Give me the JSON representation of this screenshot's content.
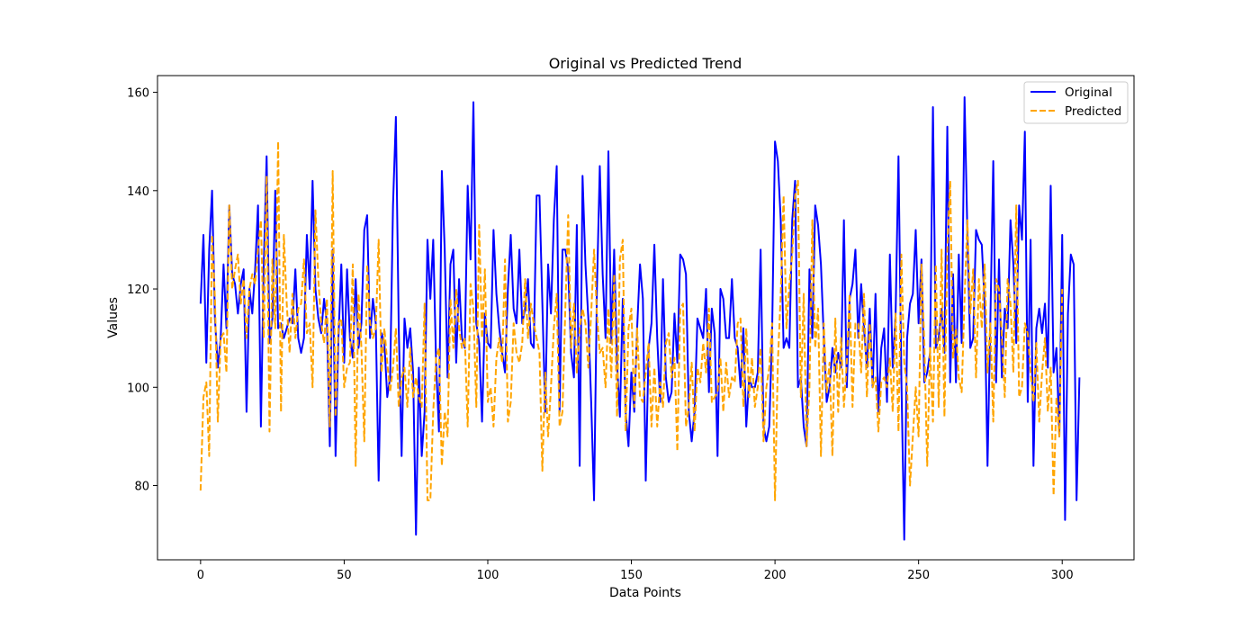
{
  "chart_data": {
    "type": "line",
    "title": "Original vs Predicted Trend",
    "xlabel": "Data Points",
    "ylabel": "Values",
    "xlim": [
      -15,
      325
    ],
    "ylim": [
      64.9,
      163.4
    ],
    "xticks": [
      0,
      50,
      100,
      150,
      200,
      250,
      300
    ],
    "yticks": [
      80,
      100,
      120,
      140,
      160
    ],
    "grid": false,
    "legend_position": "top-right",
    "series": [
      {
        "name": "Original",
        "color": "#0000ff",
        "style": "solid",
        "values": [
          117,
          131,
          105,
          128,
          140,
          114,
          104,
          110,
          125,
          112,
          137,
          123,
          121,
          115,
          121,
          124,
          95,
          120,
          115,
          124,
          137,
          92,
          125,
          147,
          109,
          114,
          140,
          112,
          113,
          110,
          112,
          114,
          113,
          124,
          110,
          107,
          110,
          131,
          120,
          142,
          120,
          114,
          111,
          118,
          113,
          88,
          128,
          86,
          110,
          125,
          105,
          124,
          110,
          106,
          122,
          108,
          113,
          132,
          135,
          110,
          118,
          113,
          81,
          111,
          109,
          98,
          102,
          137,
          155,
          112,
          86,
          114,
          108,
          112,
          103,
          70,
          104,
          86,
          95,
          130,
          118,
          130,
          105,
          91,
          144,
          128,
          102,
          125,
          128,
          105,
          122,
          110,
          108,
          141,
          126,
          158,
          113,
          109,
          93,
          115,
          109,
          108,
          132,
          119,
          112,
          107,
          103,
          120,
          131,
          116,
          113,
          128,
          113,
          116,
          122,
          109,
          108,
          139,
          139,
          117,
          95,
          125,
          115,
          134,
          145,
          95,
          128,
          128,
          124,
          107,
          102,
          133,
          84,
          143,
          125,
          114,
          97,
          77,
          120,
          145,
          123,
          110,
          148,
          109,
          128,
          105,
          94,
          118,
          95,
          88,
          103,
          95,
          112,
          125,
          118,
          81,
          108,
          113,
          129,
          110,
          97,
          122,
          102,
          97,
          99,
          115,
          105,
          127,
          126,
          123,
          95,
          89,
          95,
          114,
          112,
          110,
          120,
          99,
          116,
          111,
          86,
          120,
          118,
          110,
          110,
          122,
          110,
          108,
          100,
          112,
          92,
          102,
          100,
          100,
          103,
          128,
          92,
          89,
          92,
          111,
          150,
          146,
          134,
          108,
          110,
          108,
          134,
          142,
          100,
          102,
          92,
          88,
          124,
          110,
          137,
          133,
          125,
          110,
          97,
          100,
          108,
          103,
          107,
          104,
          134,
          100,
          118,
          121,
          128,
          110,
          121,
          112,
          104,
          116,
          100,
          119,
          95,
          108,
          112,
          97,
          127,
          104,
          115,
          147,
          102,
          69,
          110,
          117,
          119,
          132,
          113,
          126,
          101,
          103,
          107,
          157,
          108,
          110,
          116,
          107,
          153,
          101,
          123,
          101,
          127,
          109,
          159,
          131,
          108,
          110,
          132,
          130,
          129,
          117,
          84,
          114,
          146,
          101,
          126,
          102,
          116,
          112,
          134,
          125,
          109,
          137,
          130,
          152,
          97,
          130,
          84,
          112,
          116,
          111,
          117,
          104,
          141,
          103,
          108,
          90,
          131,
          73,
          115,
          127,
          125,
          77,
          102
        ]
      },
      {
        "name": "Predicted",
        "color": "#ffa500",
        "style": "dashed",
        "values": [
          79,
          98,
          101,
          86,
          131,
          118,
          93,
          110,
          111,
          103,
          137,
          120,
          124,
          127,
          117,
          122,
          110,
          120,
          123,
          121,
          128,
          134,
          110,
          143,
          91,
          126,
          112,
          150,
          95,
          131,
          117,
          107,
          119,
          110,
          116,
          117,
          126,
          111,
          113,
          100,
          136,
          122,
          113,
          109,
          118,
          92,
          144,
          94,
          113,
          114,
          100,
          104,
          105,
          125,
          84,
          119,
          108,
          89,
          125,
          113,
          110,
          112,
          130,
          103,
          112,
          105,
          99,
          104,
          112,
          96,
          102,
          104,
          96,
          108,
          98,
          102,
          98,
          96,
          117,
          77,
          77,
          95,
          106,
          108,
          84,
          95,
          90,
          118,
          108,
          120,
          112,
          108,
          110,
          92,
          121,
          116,
          96,
          133,
          110,
          124,
          97,
          100,
          92,
          106,
          110,
          105,
          126,
          93,
          97,
          113,
          107,
          105,
          109,
          122,
          110,
          117,
          113,
          110,
          107,
          83,
          103,
          90,
          100,
          112,
          119,
          92,
          95,
          116,
          135,
          108,
          117,
          103,
          112,
          116,
          113,
          104,
          115,
          128,
          115,
          107,
          108,
          100,
          116,
          102,
          123,
          94,
          126,
          130,
          91,
          112,
          116,
          96,
          112,
          98,
          97,
          103,
          109,
          92,
          104,
          92,
          101,
          96,
          109,
          111,
          102,
          106,
          87,
          116,
          117,
          92,
          96,
          105,
          91,
          104,
          101,
          109,
          103,
          116,
          97,
          98,
          99,
          106,
          95,
          105,
          98,
          102,
          101,
          113,
          114,
          96,
          112,
          98,
          106,
          96,
          100,
          108,
          89,
          100,
          104,
          113,
          77,
          105,
          119,
          139,
          112,
          121,
          127,
          139,
          142,
          98,
          119,
          88,
          100,
          134,
          108,
          116,
          86,
          113,
          99,
          105,
          86,
          114,
          95,
          110,
          96,
          105,
          119,
          96,
          113,
          113,
          103,
          119,
          98,
          113,
          100,
          102,
          91,
          101,
          102,
          100,
          106,
          95,
          115,
          91,
          127,
          105,
          100,
          80,
          90,
          100,
          90,
          125,
          109,
          84,
          108,
          93,
          125,
          96,
          128,
          94,
          128,
          142,
          106,
          112,
          102,
          99,
          118,
          134,
          115,
          124,
          102,
          122,
          112,
          125,
          103,
          113,
          93,
          122,
          120,
          110,
          98,
          122,
          117,
          103,
          137,
          98,
          100,
          113,
          111,
          103,
          97,
          109,
          93,
          103,
          110,
          95,
          104,
          78,
          98,
          90,
          120
        ]
      }
    ]
  }
}
